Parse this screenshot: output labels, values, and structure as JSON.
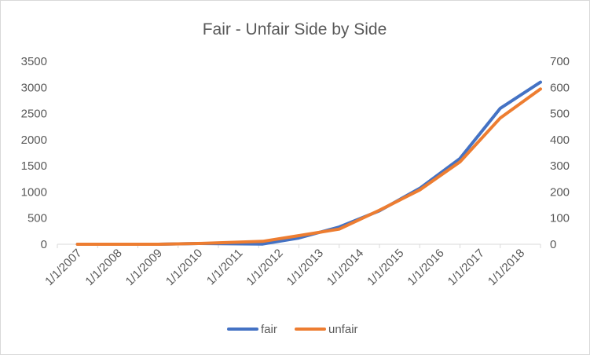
{
  "chart_data": {
    "type": "line",
    "title": "Fair - Unfair Side by Side",
    "categories": [
      "1/1/2007",
      "1/1/2008",
      "1/1/2009",
      "1/1/2010",
      "1/1/2011",
      "1/1/2012",
      "1/1/2013",
      "1/1/2014",
      "1/1/2015",
      "1/1/2016",
      "1/1/2017",
      "1/1/2018"
    ],
    "x_ticks": [
      "1/1/2007",
      "1/1/2008",
      "1/1/2009",
      "1/1/2010",
      "1/1/2011",
      "1/1/2012",
      "1/1/2013",
      "1/1/2014",
      "1/1/2015",
      "1/1/2016",
      "1/1/2017",
      "1/1/2018"
    ],
    "y_left_ticks": [
      0,
      500,
      1000,
      1500,
      2000,
      2500,
      3000,
      3500
    ],
    "y_right_ticks": [
      0,
      100,
      200,
      300,
      400,
      500,
      600,
      700
    ],
    "y_left_lim": [
      0,
      3500
    ],
    "y_right_lim": [
      0,
      700
    ],
    "series": [
      {
        "name": "fair",
        "axis": "left",
        "color": "#4472C4",
        "x": [
          2007.0,
          2008.0,
          2009.0,
          2010.0,
          2011.6,
          2012.5,
          2013.5,
          2014.5,
          2015.5,
          2016.5,
          2017.5,
          2018.5
        ],
        "values": [
          0,
          0,
          0,
          15,
          5,
          120,
          330,
          640,
          1070,
          1640,
          2600,
          3100
        ]
      },
      {
        "name": "unfair",
        "axis": "right",
        "color": "#ED7D31",
        "x": [
          2007.0,
          2008.0,
          2009.0,
          2010.0,
          2011.6,
          2012.5,
          2013.5,
          2014.5,
          2015.5,
          2016.5,
          2017.5,
          2018.5
        ],
        "values": [
          0,
          0,
          0,
          3,
          11,
          33,
          58,
          130,
          208,
          315,
          483,
          594
        ]
      }
    ],
    "legend_position": "bottom",
    "grid": false
  }
}
